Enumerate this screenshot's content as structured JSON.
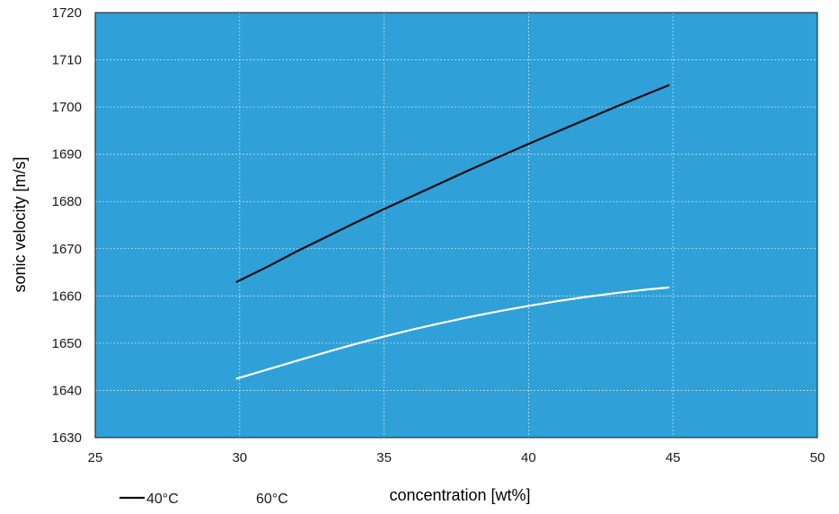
{
  "chart_data": {
    "type": "line",
    "title": "",
    "xlabel": "concentration [wt%]",
    "ylabel": "sonic velocity [m/s]",
    "xlim": [
      25,
      50
    ],
    "ylim": [
      1630,
      1720
    ],
    "xticks": [
      25,
      30,
      35,
      40,
      45,
      50
    ],
    "yticks": [
      1630,
      1640,
      1650,
      1660,
      1670,
      1680,
      1690,
      1700,
      1710,
      1720
    ],
    "grid": true,
    "legend_placement": "bottom-left",
    "series": [
      {
        "name": "40°C",
        "color": "#0d0d0d",
        "x": [
          29.9,
          31,
          32,
          33,
          34,
          35,
          36,
          37,
          38,
          39,
          40,
          41,
          42,
          43,
          44,
          44.85
        ],
        "y": [
          1663,
          1666.3,
          1669.5,
          1672.5,
          1675.5,
          1678.4,
          1681.2,
          1684,
          1686.8,
          1689.5,
          1692.2,
          1694.8,
          1697.4,
          1700,
          1702.5,
          1704.6
        ]
      },
      {
        "name": "60°C",
        "color": "#ffffff",
        "x": [
          29.9,
          31,
          32,
          33,
          34,
          35,
          36,
          37,
          38,
          39,
          40,
          41,
          42,
          43,
          44,
          44.85
        ],
        "y": [
          1642.5,
          1644.5,
          1646.3,
          1648.1,
          1649.8,
          1651.4,
          1652.9,
          1654.3,
          1655.6,
          1656.8,
          1657.9,
          1658.9,
          1659.8,
          1660.6,
          1661.3,
          1661.8
        ]
      }
    ]
  },
  "colors": {
    "plot_background": "#2fa0d8",
    "grid": "#bfe3f5",
    "frame": "#1a1a1a"
  }
}
